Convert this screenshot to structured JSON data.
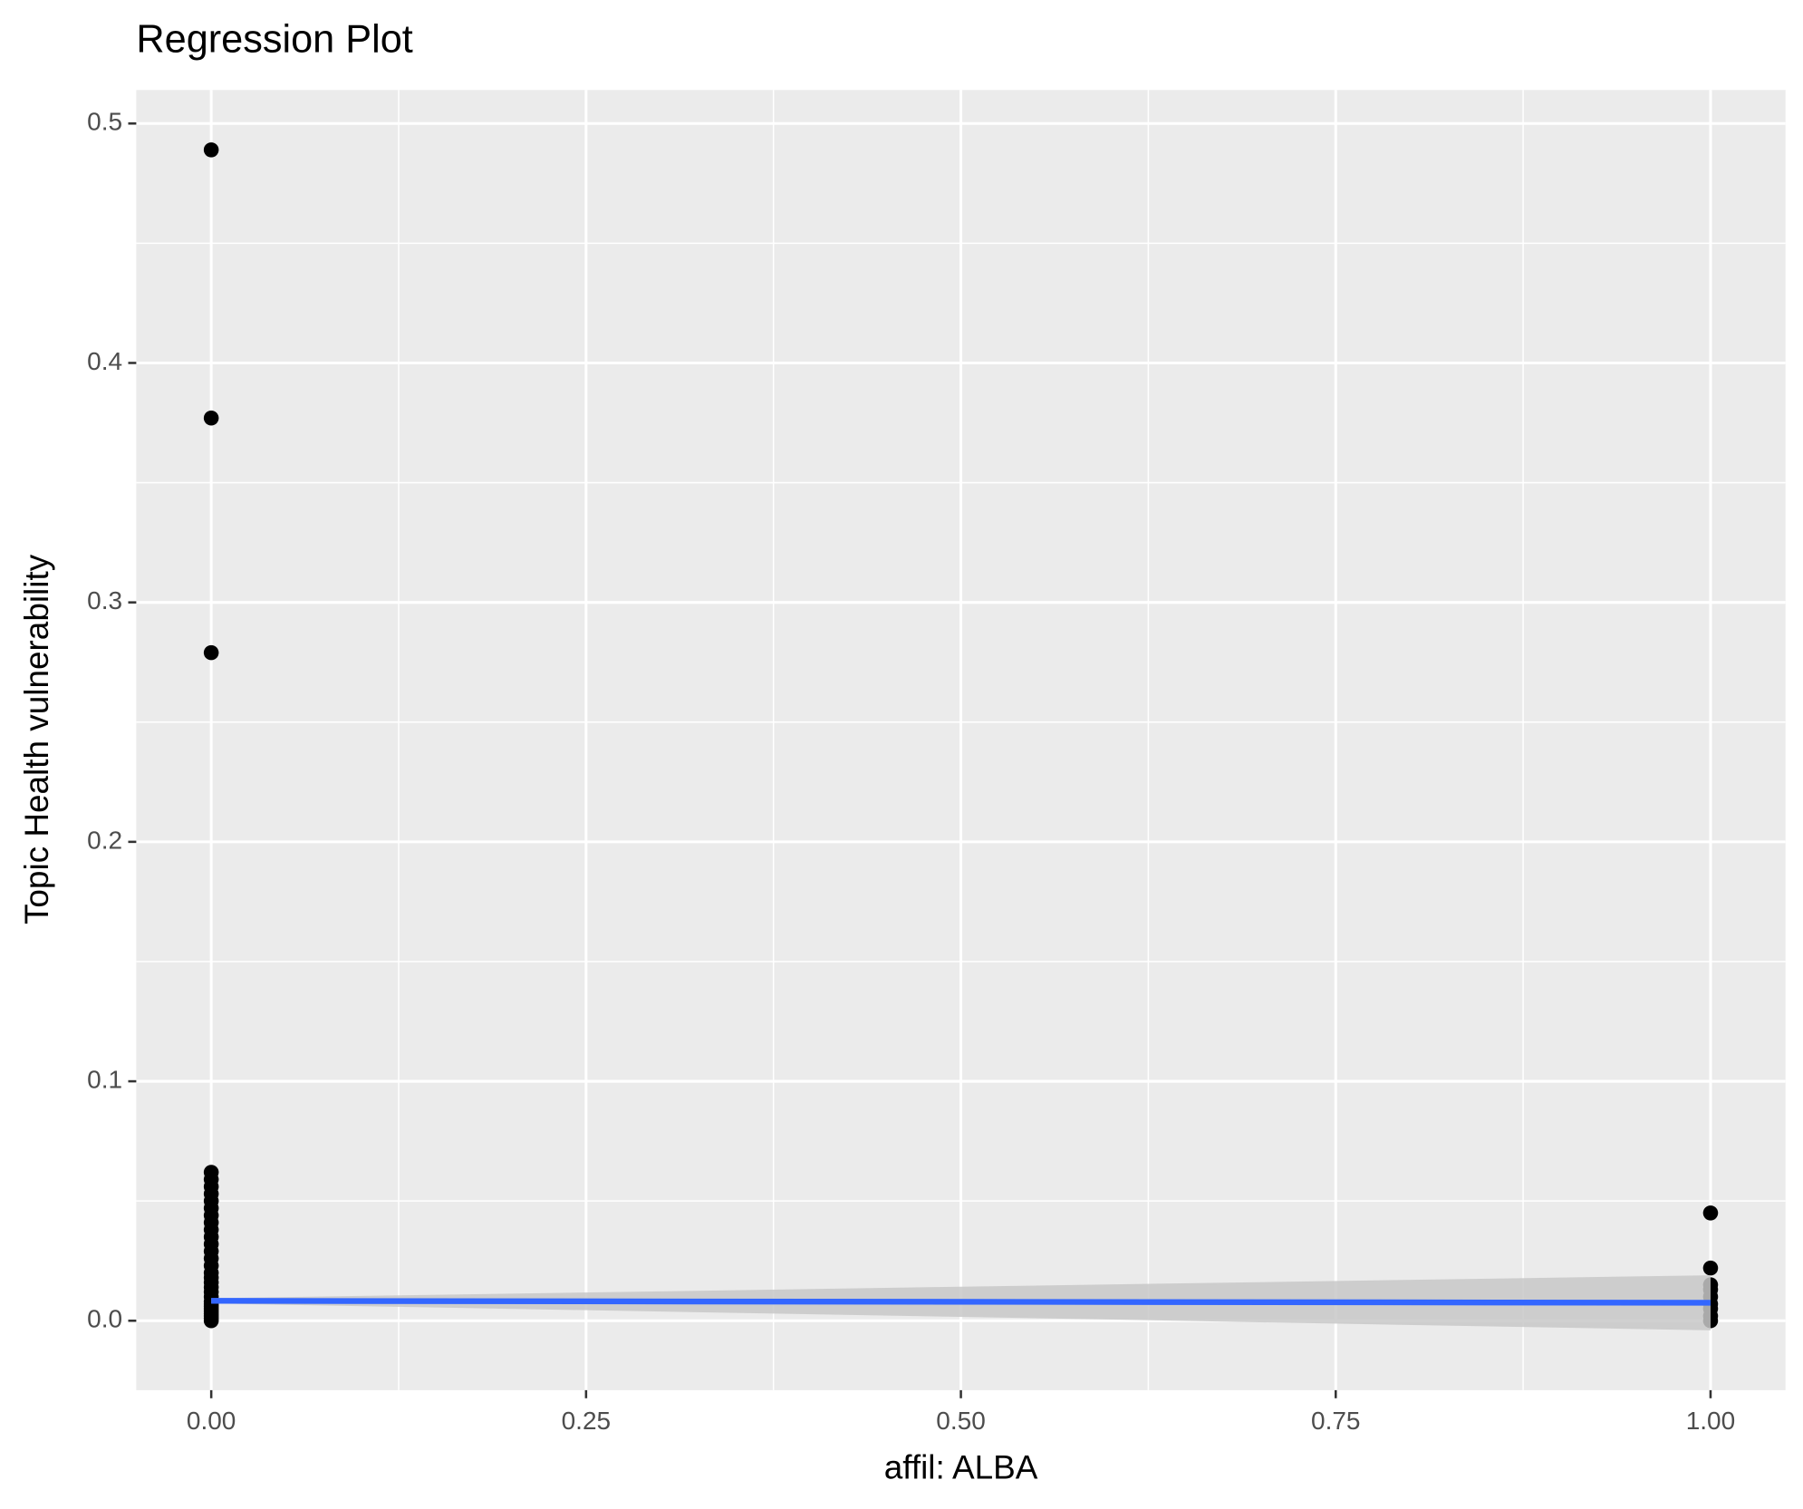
{
  "chart_data": {
    "type": "scatter",
    "title": "Regression Plot",
    "x_label": "affil: ALBA",
    "y_label": "Topic Health vulnerability",
    "xlim": [
      -0.05,
      1.05
    ],
    "ylim": [
      -0.029,
      0.514
    ],
    "xticks": [
      {
        "value": 0,
        "label": "0.00"
      },
      0.25,
      {
        "value": 0.5,
        "label": "0.50"
      },
      0.75,
      {
        "value": 1,
        "label": "1.00"
      }
    ],
    "yticks": [
      {
        "value": 0,
        "label": "0.0"
      },
      0.1,
      0.2,
      0.3,
      0.4,
      0.5
    ],
    "x_minor_ticks": [
      0.125,
      0.375,
      0.625,
      0.875
    ],
    "y_minor_ticks": [
      0.05,
      0.15,
      0.25,
      0.35,
      0.45
    ],
    "grid": true,
    "series": [
      {
        "color": "#000000",
        "x": [
          0,
          0,
          0,
          0,
          0,
          0,
          0,
          0,
          0,
          0,
          0,
          0,
          0,
          0,
          0,
          0,
          0,
          0,
          0,
          0,
          0,
          0,
          0,
          0,
          0,
          0,
          0,
          0,
          0,
          0,
          0,
          0,
          1,
          1,
          1,
          1,
          1,
          1,
          1,
          1,
          1
        ],
        "values": [
          0.489,
          0.377,
          0.279,
          0.062,
          0.059,
          0.056,
          0.053,
          0.05,
          0.047,
          0.044,
          0.041,
          0.038,
          0.035,
          0.032,
          0.029,
          0.026,
          0.023,
          0.02,
          0.018,
          0.016,
          0.014,
          0.012,
          0.01,
          0.008,
          0.007,
          0.006,
          0.005,
          0.004,
          0.003,
          0.002,
          0.001,
          0,
          0.045,
          0.022,
          0.015,
          0.013,
          0.01,
          0.007,
          0.005,
          0.002,
          0
        ]
      }
    ],
    "regression": {
      "color": "#3366ff",
      "band_color": "#c8c8c8",
      "x": [
        0,
        1
      ],
      "values": [
        0.0083,
        0.0075
      ],
      "lower": [
        0.0072,
        -0.004
      ],
      "upper": [
        0.0094,
        0.019
      ]
    }
  }
}
